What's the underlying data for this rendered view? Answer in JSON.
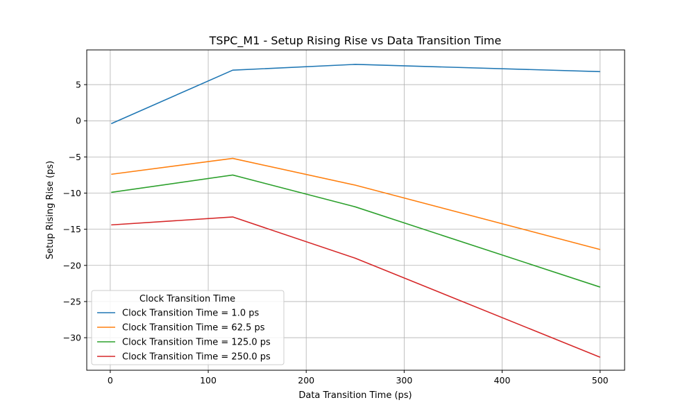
{
  "chart_data": {
    "type": "line",
    "title": "TSPC_M1 - Setup Rising Rise vs Data Transition Time",
    "xlabel": "Data Transition Time (ps)",
    "ylabel": "Setup Rising Rise (ps)",
    "x": [
      1.0,
      125.0,
      250.0,
      500.0
    ],
    "xlim": [
      -24,
      525
    ],
    "ylim": [
      -34.5,
      9.8
    ],
    "xticks": [
      0,
      100,
      200,
      300,
      400,
      500
    ],
    "yticks": [
      5,
      0,
      -5,
      -10,
      -15,
      -20,
      -25,
      -30
    ],
    "ytick_labels": [
      "5",
      "0",
      "−5",
      "−10",
      "−15",
      "−20",
      "−25",
      "−30"
    ],
    "grid": true,
    "legend": {
      "title": "Clock Transition Time",
      "placement": "lower-left"
    },
    "series": [
      {
        "name": "Clock Transition Time = 1.0 ps",
        "color": "#1f77b4",
        "values": [
          -0.4,
          7.0,
          7.8,
          6.8
        ]
      },
      {
        "name": "Clock Transition Time = 62.5 ps",
        "color": "#ff7f0e",
        "values": [
          -7.4,
          -5.2,
          -8.9,
          -17.8
        ]
      },
      {
        "name": "Clock Transition Time = 125.0 ps",
        "color": "#2ca02c",
        "values": [
          -9.9,
          -7.5,
          -11.9,
          -23.0
        ]
      },
      {
        "name": "Clock Transition Time = 250.0 ps",
        "color": "#d62728",
        "values": [
          -14.4,
          -13.3,
          -19.0,
          -32.7
        ]
      }
    ]
  }
}
